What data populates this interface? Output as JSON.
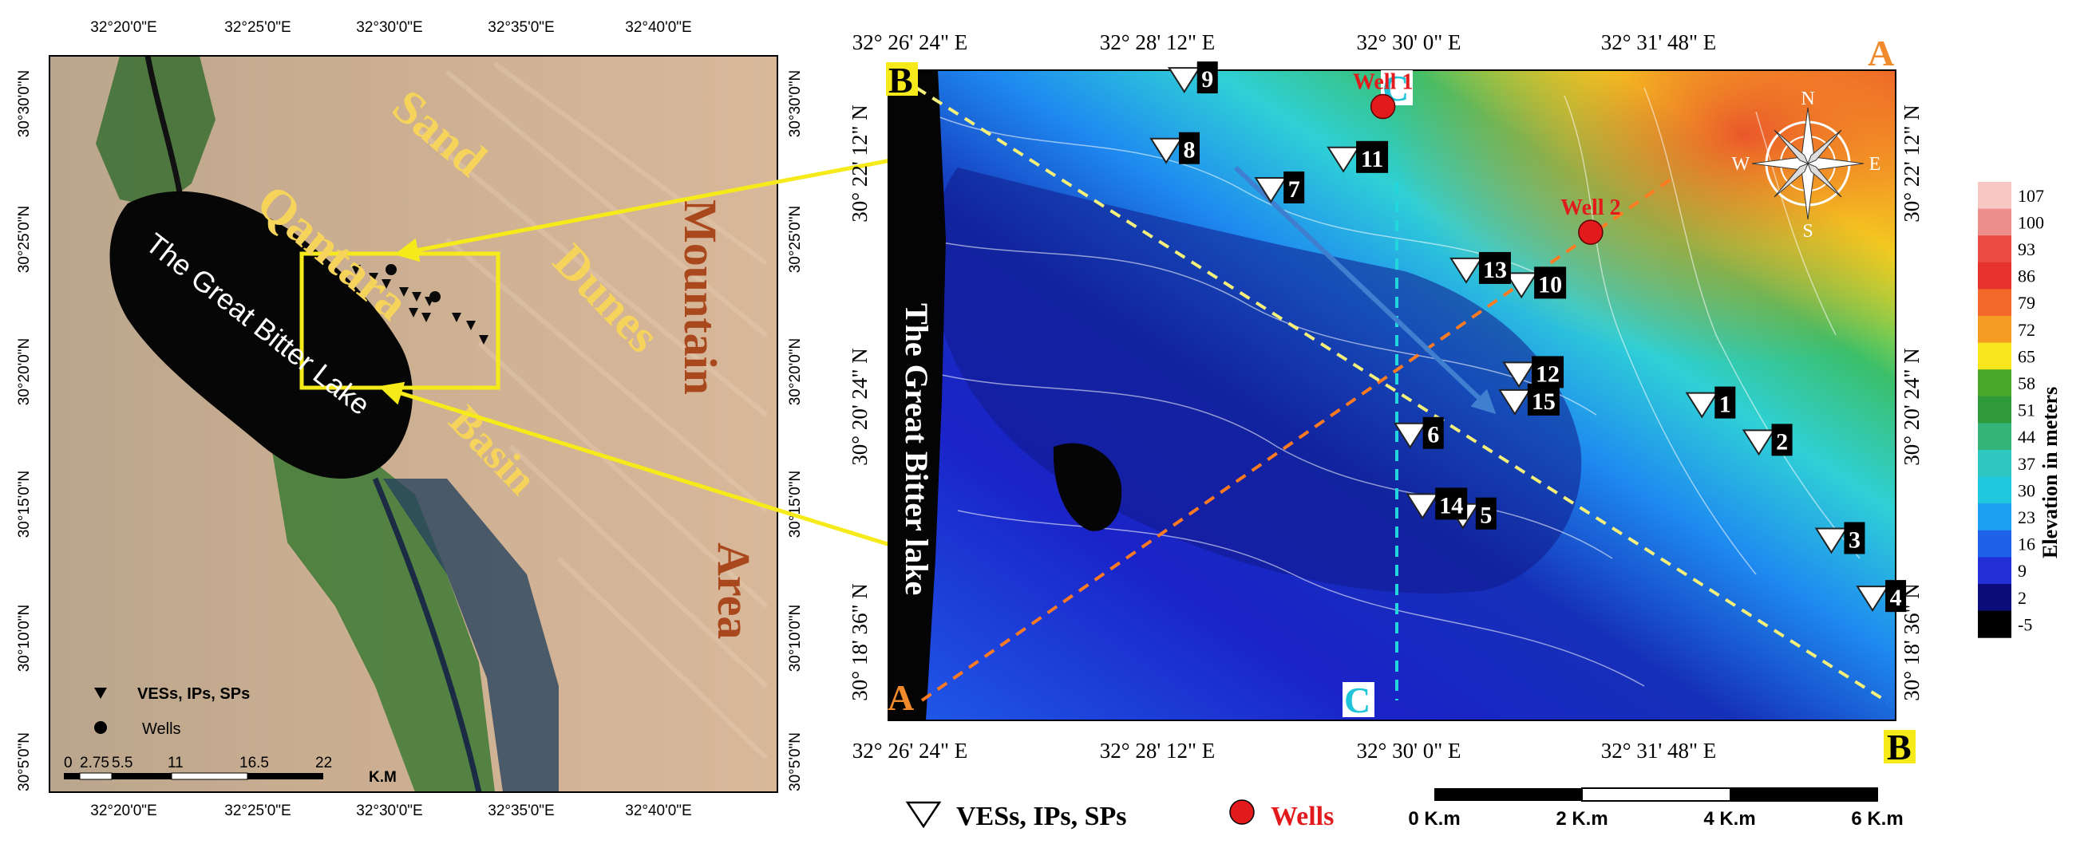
{
  "left_map": {
    "top_lon_ticks": [
      "32°20'0\"E",
      "32°25'0\"E",
      "32°30'0\"E",
      "32°35'0\"E",
      "32°40'0\"E"
    ],
    "bottom_lon_ticks": [
      "32°20'0\"E",
      "32°25'0\"E",
      "32°30'0\"E",
      "32°35'0\"E",
      "32°40'0\"E"
    ],
    "left_lat_ticks": [
      "30°30'0\"N",
      "30°25'0\"N",
      "30°20'0\"N",
      "30°15'0\"N",
      "30°10'0\"N",
      "30°5'0\"N"
    ],
    "right_lat_ticks": [
      "30°30'0\"N",
      "30°25'0\"N",
      "30°20'0\"N",
      "30°15'0\"N",
      "30°10'0\"N",
      "30°5'0\"N"
    ],
    "labels": {
      "qantara": "Qantara",
      "basin": "Basin",
      "sand": "Sand",
      "dunes": "Dunes",
      "mountain": "Mountain",
      "area": "Area",
      "lake": "The Great Bitter Lake"
    },
    "legend": {
      "ves": "VESs, IPs, SPs",
      "wells": "Wells"
    },
    "scale": {
      "ticks": [
        "0",
        "2.75",
        "5.5",
        "11",
        "16.5",
        "22"
      ],
      "unit": "K.M"
    },
    "colors": {
      "desert": "#d4b89a",
      "lake": "#0a0a0a",
      "vegetation": "#2f6b2a",
      "label_yellow": "#f6d35a",
      "label_brown": "#a9471d",
      "frame_yellow": "#f7ea1a"
    }
  },
  "right_map": {
    "top_lon_ticks": [
      "32° 26' 24\" E",
      "32° 28' 12\" E",
      "32° 30' 0\" E",
      "32° 31' 48\" E"
    ],
    "bottom_lon_ticks": [
      "32° 26' 24\" E",
      "32° 28' 12\" E",
      "32° 30' 0\" E",
      "32° 31' 48\" E"
    ],
    "left_lat_ticks": [
      "30° 22' 12\" N",
      "30° 20' 24\" N",
      "30° 18' 36\" N"
    ],
    "right_lat_ticks": [
      "30° 22' 12\" N",
      "30° 20' 24\" N",
      "30° 18' 36\" N"
    ],
    "lake_label": "The Great Bitter lake",
    "profile_labels": {
      "a_start": "A",
      "a_end": "A",
      "b_start": "B",
      "b_end": "B",
      "c_top": "C",
      "c_bottom": "C"
    },
    "wells": [
      {
        "label": "Well 1",
        "x": 32.5,
        "y": 30.3725
      },
      {
        "label": "Well 2",
        "x": 32.5252,
        "y": 30.3597
      }
    ],
    "stations": [
      {
        "label": "1",
        "x": 32.5387,
        "y": 30.3422
      },
      {
        "label": "2",
        "x": 32.5456,
        "y": 30.3384
      },
      {
        "label": "3",
        "x": 32.5544,
        "y": 30.3284
      },
      {
        "label": "4",
        "x": 32.5594,
        "y": 30.3225
      },
      {
        "label": "5",
        "x": 32.5097,
        "y": 30.3309
      },
      {
        "label": "6",
        "x": 32.5033,
        "y": 30.3391
      },
      {
        "label": "7",
        "x": 32.4864,
        "y": 30.3641
      },
      {
        "label": "8",
        "x": 32.4737,
        "y": 30.3681
      },
      {
        "label": "9",
        "x": 32.4759,
        "y": 30.3753
      },
      {
        "label": "10",
        "x": 32.5168,
        "y": 30.3544
      },
      {
        "label": "11",
        "x": 32.4952,
        "y": 30.3672
      },
      {
        "label": "12",
        "x": 32.5165,
        "y": 30.3453
      },
      {
        "label": "13",
        "x": 32.5101,
        "y": 30.3559
      },
      {
        "label": "14",
        "x": 32.5048,
        "y": 30.3319
      },
      {
        "label": "15",
        "x": 32.516,
        "y": 30.3425
      }
    ],
    "north_arrow": {
      "n": "N",
      "e": "E",
      "s": "S",
      "w": "W"
    },
    "colors": {
      "well_fill": "#e31a1c",
      "well_label": "#e31a1c",
      "station_fill": "#ffffff",
      "label_box": "#000000",
      "a_line": "#ff7a20",
      "b_line": "#f5f07a",
      "c_line": "#21d6dc",
      "flow_arrow": "#3f7fcf",
      "tick_text": "#000000",
      "a_label": "#f08a2a",
      "c_label": "#20c4d8"
    }
  },
  "colorbar": {
    "title": "Elevation in meters",
    "ticks": [
      "107",
      "100",
      "93",
      "86",
      "79",
      "72",
      "65",
      "58",
      "51",
      "44",
      "37",
      "30",
      "23",
      "16",
      "9",
      "2",
      "-5"
    ],
    "colors": [
      "#f7c7c4",
      "#ef8f8c",
      "#ea4c43",
      "#e5322a",
      "#f2692a",
      "#f59a23",
      "#f8e51e",
      "#49a829",
      "#2f9a3b",
      "#35b47a",
      "#2fc7c1",
      "#21c7de",
      "#1b9ff0",
      "#1f61e8",
      "#2330d6",
      "#0b0b7a",
      "#000000"
    ]
  },
  "bottom_legend": {
    "ves": "VESs, IPs, SPs",
    "wells": "Wells",
    "scale_ticks": [
      "0 K.m",
      "2 K.m",
      "4 K.m",
      "6 K.m"
    ]
  }
}
